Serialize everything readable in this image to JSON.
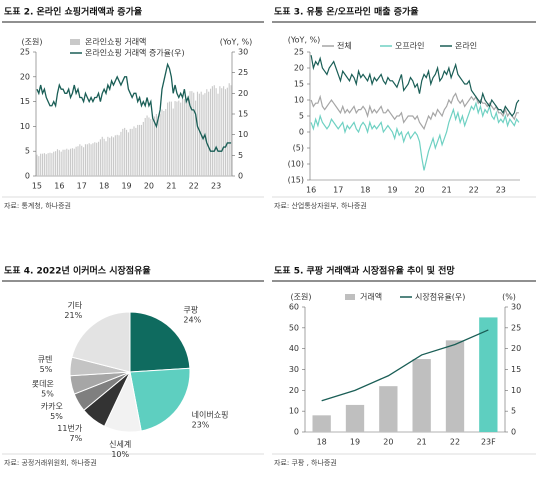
{
  "chart_data": [
    {
      "type": "combo",
      "title": "도표 2. 온라인 쇼핑거래액과 증가율",
      "source": "자료: 통계청, 하나증권",
      "y_label": "(조원)",
      "y2_label": "(YoY, %)",
      "categories": [
        "15",
        null,
        null,
        null,
        null,
        null,
        null,
        null,
        null,
        null,
        null,
        null,
        "16",
        null,
        null,
        null,
        null,
        null,
        null,
        null,
        null,
        null,
        null,
        null,
        "17",
        null,
        null,
        null,
        null,
        null,
        null,
        null,
        null,
        null,
        null,
        null,
        "18",
        null,
        null,
        null,
        null,
        null,
        null,
        null,
        null,
        null,
        null,
        null,
        "19",
        null,
        null,
        null,
        null,
        null,
        null,
        null,
        null,
        null,
        null,
        null,
        "20",
        null,
        null,
        null,
        null,
        null,
        null,
        null,
        null,
        null,
        null,
        null,
        "21",
        null,
        null,
        null,
        null,
        null,
        null,
        null,
        null,
        null,
        null,
        null,
        "22",
        null,
        null,
        null,
        null,
        null,
        null,
        null,
        null,
        null,
        null,
        null,
        "23",
        null,
        null,
        null,
        null,
        null,
        null,
        null,
        null
      ],
      "ylim": [
        0,
        25
      ],
      "yticks": [
        0,
        5,
        10,
        15,
        20,
        25
      ],
      "y2lim": [
        0,
        30
      ],
      "y2ticks": [
        0,
        5,
        10,
        15,
        20,
        25,
        30
      ],
      "series": [
        {
          "name": "온라인쇼핑 거래액",
          "kind": "bar",
          "color": "#c9c9c9",
          "values": [
            4.3,
            4.0,
            4.5,
            4.5,
            4.6,
            4.4,
            4.6,
            4.7,
            4.6,
            4.9,
            5.0,
            5.4,
            5.2,
            4.9,
            5.3,
            5.3,
            5.5,
            5.3,
            5.5,
            5.6,
            5.5,
            5.9,
            6.0,
            6.4,
            6.1,
            5.8,
            6.4,
            6.4,
            6.6,
            6.4,
            6.6,
            6.8,
            6.7,
            6.9,
            7.4,
            7.9,
            7.5,
            7.0,
            7.9,
            7.7,
            8.0,
            7.8,
            8.2,
            8.3,
            8.2,
            8.9,
            9.5,
            9.7,
            9.3,
            8.8,
            9.5,
            9.5,
            10.0,
            9.7,
            10.3,
            10.3,
            10.3,
            10.9,
            11.7,
            12.2,
            11.8,
            11.5,
            12.2,
            12.0,
            12.5,
            12.1,
            12.6,
            13.4,
            13.1,
            13.5,
            14.8,
            15.0,
            15.0,
            13.6,
            15.1,
            15.0,
            15.2,
            14.8,
            15.6,
            15.5,
            15.7,
            16.2,
            17.1,
            17.1,
            16.8,
            15.2,
            17.0,
            16.6,
            17.0,
            16.4,
            16.7,
            17.5,
            17.0,
            17.6,
            18.1,
            18.3,
            17.7,
            16.6,
            18.1,
            17.7,
            18.1,
            17.5,
            17.8,
            18.7,
            18.3
          ]
        },
        {
          "name": "온라인쇼핑 거래액 증가율(우)",
          "kind": "line",
          "axis": "y2",
          "color": "#1a5e56",
          "values": [
            21,
            20,
            22,
            20,
            21,
            19,
            18,
            17,
            17,
            18,
            17,
            20,
            22,
            21,
            21,
            20,
            20,
            21,
            19,
            20,
            22,
            20,
            21,
            19,
            19,
            18,
            20,
            19,
            18,
            19,
            18,
            19,
            19,
            20,
            18,
            20,
            21,
            20,
            22,
            21,
            23,
            22,
            23,
            24,
            23,
            22,
            23,
            24,
            24,
            21,
            20,
            19,
            20,
            20,
            18,
            19,
            17,
            18,
            17,
            19,
            17,
            18,
            14,
            13,
            12,
            14,
            16,
            21,
            23,
            25,
            27,
            26,
            24,
            20,
            22,
            20,
            19,
            20,
            19,
            21,
            18,
            19,
            17,
            16,
            16,
            15,
            12,
            11,
            10,
            9,
            10,
            8,
            7,
            6,
            6,
            6,
            7,
            6,
            6,
            6,
            7,
            7,
            8,
            8,
            8
          ]
        }
      ]
    },
    {
      "type": "line",
      "title": "도표 3. 유통 온/오프라인 매출 증가율",
      "source": "자료: 산업통상자원부, 하나증권",
      "y_label": "(YoY, %)",
      "categories": [
        "16",
        null,
        null,
        null,
        null,
        null,
        null,
        null,
        null,
        null,
        null,
        null,
        "17",
        null,
        null,
        null,
        null,
        null,
        null,
        null,
        null,
        null,
        null,
        null,
        "18",
        null,
        null,
        null,
        null,
        null,
        null,
        null,
        null,
        null,
        null,
        null,
        "19",
        null,
        null,
        null,
        null,
        null,
        null,
        null,
        null,
        null,
        null,
        null,
        "20",
        null,
        null,
        null,
        null,
        null,
        null,
        null,
        null,
        null,
        null,
        null,
        "21",
        null,
        null,
        null,
        null,
        null,
        null,
        null,
        null,
        null,
        null,
        null,
        "22",
        null,
        null,
        null,
        null,
        null,
        null,
        null,
        null,
        null,
        null,
        null,
        "23",
        null,
        null,
        null,
        null,
        null,
        null,
        null,
        null
      ],
      "ylim": [
        -15,
        25
      ],
      "yticks": [
        {
          "value": -15,
          "label": "(15)"
        },
        {
          "value": -10,
          "label": "(10)"
        },
        {
          "value": -5,
          "label": "(5)"
        },
        0,
        5,
        10,
        15,
        20,
        25
      ],
      "series": [
        {
          "name": "전체",
          "color": "#a6a6a6",
          "values": [
            10,
            8,
            9,
            9,
            11,
            8,
            7,
            8,
            9,
            10,
            9,
            8,
            7,
            6,
            8,
            6,
            7,
            6,
            7,
            8,
            6,
            7,
            7,
            8,
            7,
            5,
            8,
            6,
            7,
            6,
            7,
            8,
            6,
            6,
            7,
            6,
            5,
            4,
            5,
            5,
            6,
            3,
            4,
            5,
            5,
            5,
            4,
            5,
            3,
            2,
            1,
            3,
            5,
            4,
            6,
            5,
            7,
            6,
            5,
            7,
            8,
            10,
            9,
            11,
            12,
            10,
            9,
            10,
            8,
            9,
            10,
            11,
            10,
            11,
            9,
            10,
            9,
            9,
            8,
            9,
            8,
            7,
            8,
            6,
            6,
            5,
            7,
            5,
            6,
            5,
            4,
            6,
            6
          ]
        },
        {
          "name": "오프라인",
          "color": "#6fd1c3",
          "values": [
            3,
            1,
            4,
            2,
            5,
            3,
            2,
            1,
            2,
            4,
            3,
            2,
            1,
            2,
            3,
            0,
            2,
            1,
            2,
            3,
            1,
            0,
            2,
            3,
            2,
            0,
            3,
            1,
            2,
            1,
            2,
            3,
            0,
            1,
            2,
            1,
            0,
            -2,
            1,
            -1,
            0,
            -3,
            -1,
            0,
            -2,
            -1,
            0,
            -1,
            -3,
            -8,
            -12,
            -9,
            -6,
            -4,
            -2,
            -5,
            -3,
            -1,
            -4,
            -2,
            0,
            3,
            5,
            7,
            4,
            6,
            3,
            5,
            2,
            4,
            6,
            8,
            7,
            9,
            6,
            8,
            5,
            7,
            6,
            8,
            5,
            4,
            6,
            3,
            4,
            3,
            5,
            2,
            4,
            3,
            2,
            4,
            3
          ]
        },
        {
          "name": "온라인",
          "color": "#1a5e56",
          "values": [
            24,
            20,
            22,
            21,
            23,
            20,
            19,
            18,
            20,
            21,
            22,
            20,
            18,
            16,
            19,
            18,
            17,
            16,
            18,
            17,
            15,
            19,
            17,
            18,
            17,
            16,
            18,
            15,
            17,
            16,
            17,
            18,
            16,
            15,
            17,
            16,
            16,
            15,
            14,
            16,
            18,
            13,
            14,
            15,
            17,
            16,
            14,
            15,
            12,
            16,
            18,
            17,
            19,
            15,
            17,
            18,
            20,
            16,
            17,
            19,
            18,
            20,
            17,
            19,
            21,
            18,
            17,
            16,
            15,
            15,
            16,
            13,
            12,
            11,
            10,
            9,
            12,
            10,
            9,
            8,
            10,
            9,
            8,
            7,
            7,
            6,
            8,
            7,
            6,
            5,
            6,
            9,
            10
          ]
        }
      ]
    },
    {
      "type": "pie",
      "title": "도표 4. 2022년 이커머스 시장점유율",
      "source": "자료: 공정거래위원회, 하나증권",
      "categories": [
        "쿠팡",
        "네이버쇼핑",
        "신세계",
        "11번가",
        "카카오",
        "롯데온",
        "큐텐",
        "기타"
      ],
      "values": [
        24,
        23,
        10,
        7,
        5,
        5,
        5,
        21
      ],
      "value_labels": [
        "24%",
        "23%",
        "10%",
        "7%",
        "5%",
        "5%",
        "5%",
        "21%"
      ],
      "colors": [
        "#0f6b5f",
        "#5ecfc0",
        "#f2f2f2",
        "#333333",
        "#7f7f7f",
        "#a6a6a6",
        "#c4c4c4",
        "#e3e3e3"
      ]
    },
    {
      "type": "combo",
      "title": "도표 5. 쿠팡 거래액과 시장점유율 추이 및 전망",
      "source": "자료: 쿠팡 , 하나증권",
      "y_label": "(조원)",
      "y2_label": "(%)",
      "categories": [
        "18",
        "19",
        "20",
        "21",
        "22",
        "23F"
      ],
      "ylim": [
        0,
        60
      ],
      "yticks": [
        0,
        10,
        20,
        30,
        40,
        50,
        60
      ],
      "y2lim": [
        0,
        30
      ],
      "y2ticks": [
        0,
        5,
        10,
        15,
        20,
        25,
        30
      ],
      "series": [
        {
          "name": "거래액",
          "kind": "bar",
          "color": "#bfbfbf",
          "colors": [
            "#bfbfbf",
            "#bfbfbf",
            "#bfbfbf",
            "#bfbfbf",
            "#bfbfbf",
            "#5ecfc0"
          ],
          "values": [
            8,
            13,
            22,
            35,
            44,
            55
          ]
        },
        {
          "name": "시장점유율(우)",
          "kind": "line",
          "axis": "y2",
          "color": "#1a5e56",
          "values": [
            7.5,
            10,
            13.5,
            18.5,
            21,
            24.5
          ]
        }
      ]
    }
  ]
}
